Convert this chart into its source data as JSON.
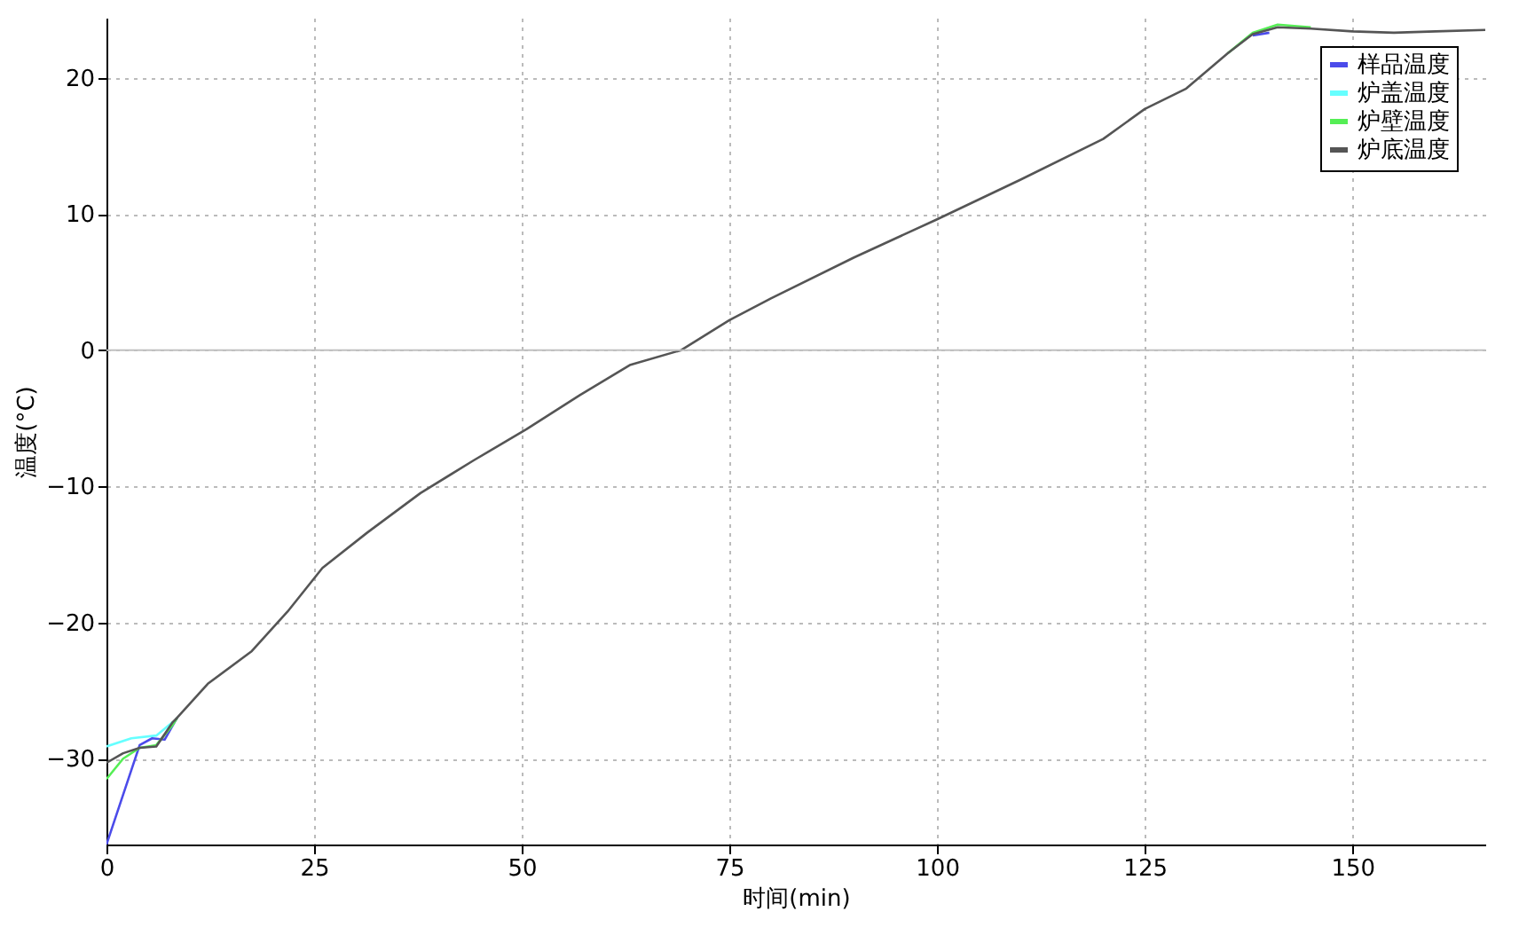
{
  "chart_data": {
    "type": "line",
    "xlabel": "时间(min)",
    "ylabel": "温度(°C)",
    "xlim": [
      0,
      166
    ],
    "ylim": [
      -36.3,
      24.4
    ],
    "xticks": [
      0,
      25,
      50,
      75,
      100,
      125,
      150
    ],
    "yticks": [
      -30,
      -20,
      -10,
      0,
      10,
      20
    ],
    "grid": true,
    "legend": "top right",
    "line_style": "solid",
    "marker": "none",
    "ref_lines": [
      {
        "axis": "y",
        "value": 0,
        "color": "#c0c0c0"
      }
    ],
    "series": [
      {
        "name": "样品温度",
        "color": "#4b4bea",
        "x": [
          0,
          4,
          5.5,
          7,
          8.5,
          12.2,
          17.5,
          21.8,
          26,
          31.4,
          37.8,
          44.2,
          50.6,
          57,
          63,
          69.2,
          75,
          80,
          90,
          100,
          110,
          120,
          125,
          130,
          135,
          138,
          140
        ],
        "values": [
          -36.3,
          -29,
          -28.5,
          -28.6,
          -27,
          null,
          null,
          null,
          null,
          null,
          null,
          null,
          null,
          null,
          null,
          null,
          null,
          null,
          null,
          null,
          null,
          null,
          null,
          null,
          null,
          23.1,
          23.3
        ]
      },
      {
        "name": "炉盖温度",
        "color": "#66ffff",
        "x": [
          0,
          3,
          6,
          8
        ],
        "values": [
          -29.1,
          -28.5,
          -28.3,
          -27.3
        ]
      },
      {
        "name": "炉壁温度",
        "color": "#55ee55",
        "x": [
          0,
          2,
          4,
          6,
          8,
          8.5,
          12.2,
          17.5,
          21.8,
          26,
          31.4,
          37.8,
          44.2,
          50.6,
          57,
          63,
          69.2,
          75,
          80,
          90,
          100,
          110,
          120,
          125,
          130,
          135,
          138,
          141,
          145
        ],
        "values": [
          -31.5,
          -30,
          -29.2,
          -29,
          -27.5,
          -27,
          null,
          null,
          null,
          null,
          null,
          null,
          null,
          null,
          null,
          null,
          null,
          null,
          null,
          null,
          null,
          null,
          null,
          null,
          null,
          21.8,
          23.3,
          23.9,
          23.7
        ]
      },
      {
        "name": "炉底温度",
        "color": "#555555",
        "x": [
          0,
          2,
          4,
          6,
          8,
          8.5,
          12.2,
          17.5,
          21.8,
          26,
          31.4,
          37.8,
          44.2,
          50.6,
          57,
          63,
          69.2,
          75,
          80,
          90,
          100,
          110,
          120,
          125,
          130,
          135,
          138,
          141,
          145,
          150,
          155,
          160,
          166
        ],
        "values": [
          -30.3,
          -29.6,
          -29.2,
          -29.1,
          -27.3,
          -27,
          -24.5,
          -22.1,
          -19.2,
          -16,
          -13.4,
          -10.5,
          -8.1,
          -5.8,
          -3.3,
          -1.1,
          0,
          2.2,
          3.8,
          6.8,
          9.6,
          12.5,
          15.5,
          17.7,
          19.2,
          21.8,
          23.2,
          23.7,
          23.6,
          23.4,
          23.3,
          23.4,
          23.5
        ]
      }
    ]
  }
}
